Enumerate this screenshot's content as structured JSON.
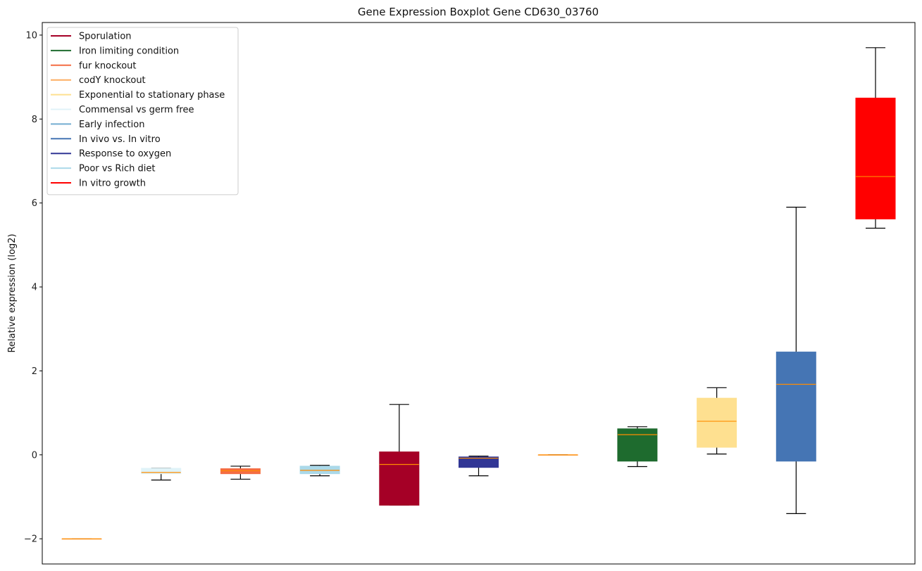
{
  "chart_data": {
    "type": "box",
    "title": "Gene Expression Boxplot Gene CD630_03760",
    "xlabel": "",
    "ylabel": "Relative expression (log2)",
    "ylim": [
      -2.6,
      10.3
    ],
    "yticks": [
      -2,
      0,
      2,
      4,
      6,
      8,
      10
    ],
    "ytick_labels": [
      "−2",
      "0",
      "2",
      "4",
      "6",
      "8",
      "10"
    ],
    "median_color": "#ff8c00",
    "legend_position": "top-left",
    "legend": [
      {
        "label": "Sporulation",
        "color": "#a50026"
      },
      {
        "label": "Iron limiting condition",
        "color": "#1e6b2e"
      },
      {
        "label": "fur knockout",
        "color": "#f46d43"
      },
      {
        "label": "codY knockout",
        "color": "#fdae61"
      },
      {
        "label": "Exponential to stationary phase",
        "color": "#fee090"
      },
      {
        "label": "Commensal vs germ free",
        "color": "#e0f3f8"
      },
      {
        "label": "Early infection",
        "color": "#74add1"
      },
      {
        "label": "In vivo vs. In vitro",
        "color": "#4575b4"
      },
      {
        "label": "Response to oxygen",
        "color": "#313695"
      },
      {
        "label": "Poor vs Rich diet",
        "color": "#abd9e9"
      },
      {
        "label": "In vitro growth",
        "color": "#ff0000"
      }
    ],
    "boxes": [
      {
        "color": "#fdae61",
        "whisker_low": -2.0,
        "q1": -2.0,
        "median": -2.0,
        "q3": -2.0,
        "whisker_high": -2.0
      },
      {
        "color": "#e0f3f8",
        "whisker_low": -0.6,
        "q1": -0.45,
        "median": -0.42,
        "q3": -0.32,
        "whisker_high": -0.32
      },
      {
        "color": "#f46d43",
        "whisker_low": -0.58,
        "q1": -0.45,
        "median": -0.38,
        "q3": -0.33,
        "whisker_high": -0.27
      },
      {
        "color": "#abd9e9",
        "whisker_low": -0.5,
        "q1": -0.45,
        "median": -0.37,
        "q3": -0.27,
        "whisker_high": -0.25
      },
      {
        "color": "#a50026",
        "whisker_low": -1.2,
        "q1": -1.2,
        "median": -0.23,
        "q3": 0.07,
        "whisker_high": 1.2
      },
      {
        "color": "#313695",
        "whisker_low": -0.5,
        "q1": -0.3,
        "median": -0.08,
        "q3": -0.05,
        "whisker_high": -0.03
      },
      {
        "color": "#fdae61",
        "whisker_low": 0.0,
        "q1": 0.0,
        "median": 0.0,
        "q3": 0.0,
        "whisker_high": 0.0
      },
      {
        "color": "#1e6b2e",
        "whisker_low": -0.28,
        "q1": -0.15,
        "median": 0.48,
        "q3": 0.62,
        "whisker_high": 0.67
      },
      {
        "color": "#fee090",
        "whisker_low": 0.02,
        "q1": 0.18,
        "median": 0.8,
        "q3": 1.35,
        "whisker_high": 1.6
      },
      {
        "color": "#4575b4",
        "whisker_low": -1.4,
        "q1": -0.15,
        "median": 1.68,
        "q3": 2.45,
        "whisker_high": 5.9
      },
      {
        "color": "#ff0000",
        "whisker_low": 5.4,
        "q1": 5.62,
        "median": 6.63,
        "q3": 8.5,
        "whisker_high": 9.7
      }
    ]
  }
}
